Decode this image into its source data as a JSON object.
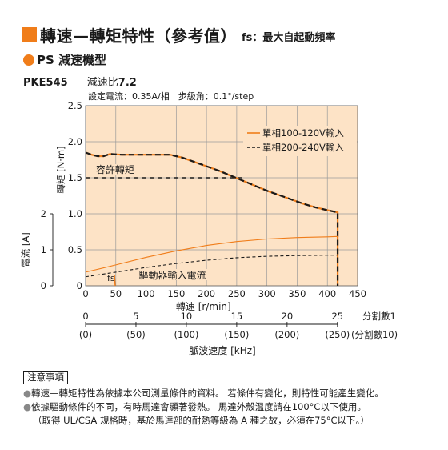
{
  "header": {
    "title": "轉速—轉矩特性（參考值）",
    "subtitle": "fs：最大自起動頻率"
  },
  "series_title": "PS 減速機型",
  "model": {
    "name": "PKE545",
    "ratio_label": "減速比",
    "ratio_value": "7.2"
  },
  "chart_data": {
    "type": "line",
    "title": "",
    "setting_text": "設定電流：0.35A/相　步級角：0.1°/step",
    "xlabel": "轉速 [r/min]",
    "ylabel_torque": "轉矩 [N·m]",
    "ylabel_current": "電流 [A]",
    "xlim": [
      0,
      450
    ],
    "ylim_torque": [
      0,
      2.5
    ],
    "ylim_current": [
      0,
      2
    ],
    "x_ticks": [
      0,
      50,
      100,
      150,
      200,
      250,
      300,
      350,
      400,
      450
    ],
    "y_ticks_torque": [
      "0",
      "0.5",
      "1.0",
      "1.5",
      "2.0",
      "2.5"
    ],
    "y_ticks_current": [
      "0",
      "1",
      "2"
    ],
    "grid": true,
    "legend_position": "top-right",
    "plot_area_color": "#fde3c6",
    "series": [
      {
        "name": "單相100-120V輸入",
        "kind": "torque",
        "color": "#f07d1a",
        "style": "solid",
        "x": [
          0,
          10,
          20,
          30,
          40,
          60,
          80,
          100,
          120,
          140,
          160,
          180,
          200,
          220,
          240,
          260,
          280,
          300,
          320,
          340,
          360,
          380,
          400,
          417,
          417
        ],
        "y": [
          1.85,
          1.82,
          1.8,
          1.8,
          1.83,
          1.82,
          1.82,
          1.82,
          1.82,
          1.82,
          1.78,
          1.72,
          1.66,
          1.6,
          1.53,
          1.46,
          1.39,
          1.32,
          1.26,
          1.2,
          1.14,
          1.09,
          1.05,
          1.02,
          0
        ]
      },
      {
        "name": "單相200-240V輸入",
        "kind": "torque",
        "color": "#1a1a1a",
        "style": "dashed",
        "x": [
          0,
          10,
          20,
          30,
          40,
          60,
          80,
          100,
          120,
          140,
          160,
          180,
          200,
          220,
          240,
          260,
          280,
          300,
          320,
          340,
          360,
          380,
          400,
          417,
          417
        ],
        "y": [
          1.85,
          1.82,
          1.8,
          1.8,
          1.83,
          1.82,
          1.82,
          1.82,
          1.82,
          1.82,
          1.78,
          1.72,
          1.66,
          1.6,
          1.53,
          1.46,
          1.39,
          1.32,
          1.26,
          1.2,
          1.14,
          1.09,
          1.05,
          1.02,
          0
        ]
      },
      {
        "kind": "current",
        "color": "#f07d1a",
        "style": "solid",
        "x": [
          0,
          50,
          100,
          150,
          200,
          250,
          300,
          350,
          400,
          417
        ],
        "y": [
          0.38,
          0.58,
          0.79,
          0.97,
          1.12,
          1.23,
          1.3,
          1.34,
          1.36,
          1.37
        ]
      },
      {
        "kind": "current",
        "color": "#1a1a1a",
        "style": "dashed",
        "x": [
          0,
          50,
          100,
          150,
          200,
          250,
          300,
          350,
          400,
          417
        ],
        "y": [
          0.25,
          0.38,
          0.51,
          0.62,
          0.71,
          0.78,
          0.82,
          0.84,
          0.85,
          0.85
        ]
      }
    ],
    "allowable_torque": {
      "label": "容許轉矩",
      "value": 1.5
    },
    "fs": {
      "label": "fs",
      "value": 45
    },
    "current_label": "驅動器輸入電流",
    "pulse_axis": {
      "label": "脈波速度 [kHz]",
      "ticks": [
        0,
        5,
        10,
        15,
        20,
        25
      ],
      "tick_labels_bottom": [
        "(0)",
        "(50)",
        "(100)",
        "(150)",
        "(200)",
        "(250)"
      ],
      "unit1": "分割數1",
      "unit10": "(分割數10)"
    }
  },
  "notes": {
    "title": "注意事項",
    "lines": [
      "轉速—轉矩特性為依據本公司測量條件的資料。 若條件有變化，則特性可能產生變化。",
      "依據驅動條件的不同，有時馬達會顯著發熱。 馬達外殼溫度請在100°C以下使用。"
    ],
    "paren_line": "（取得 UL/CSA 規格時，基於馬達部的耐熱等級為 A 種之故，必須在75°C以下。）"
  }
}
